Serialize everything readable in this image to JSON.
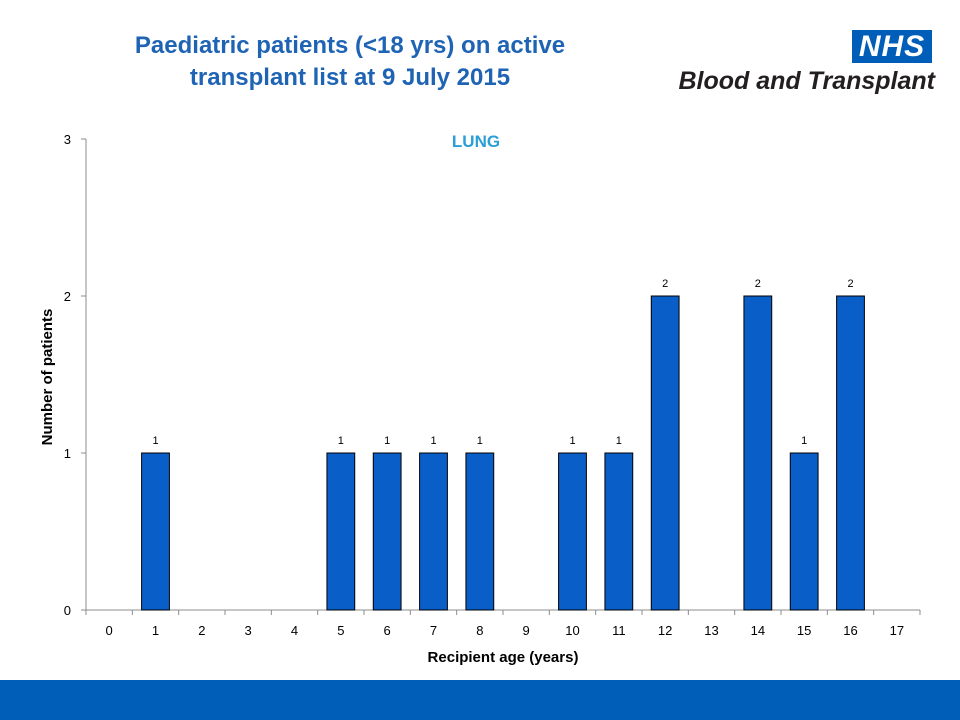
{
  "header": {
    "title_line1": "Paediatric patients (<18 yrs) on active",
    "title_line2": "transplant list at 9 July 2015"
  },
  "logo": {
    "badge": "NHS",
    "text": "Blood and Transplant"
  },
  "colors": {
    "title": "#1f64b4",
    "subtitle": "#2a9fd6",
    "bar_fill": "#0a5ec8",
    "bar_stroke": "#000000",
    "footer": "#005eb8"
  },
  "chart_data": {
    "type": "bar",
    "title": "LUNG",
    "xlabel": "Recipient age (years)",
    "ylabel": "Number of patients",
    "categories": [
      "0",
      "1",
      "2",
      "3",
      "4",
      "5",
      "6",
      "7",
      "8",
      "9",
      "10",
      "11",
      "12",
      "13",
      "14",
      "15",
      "16",
      "17"
    ],
    "values": [
      0,
      1,
      0,
      0,
      0,
      1,
      1,
      1,
      1,
      0,
      1,
      1,
      2,
      0,
      2,
      1,
      2,
      0
    ],
    "ylim": [
      0,
      3
    ],
    "yticks": [
      0,
      1,
      2,
      3
    ],
    "data_labels": true,
    "grid": false,
    "legend": false
  }
}
